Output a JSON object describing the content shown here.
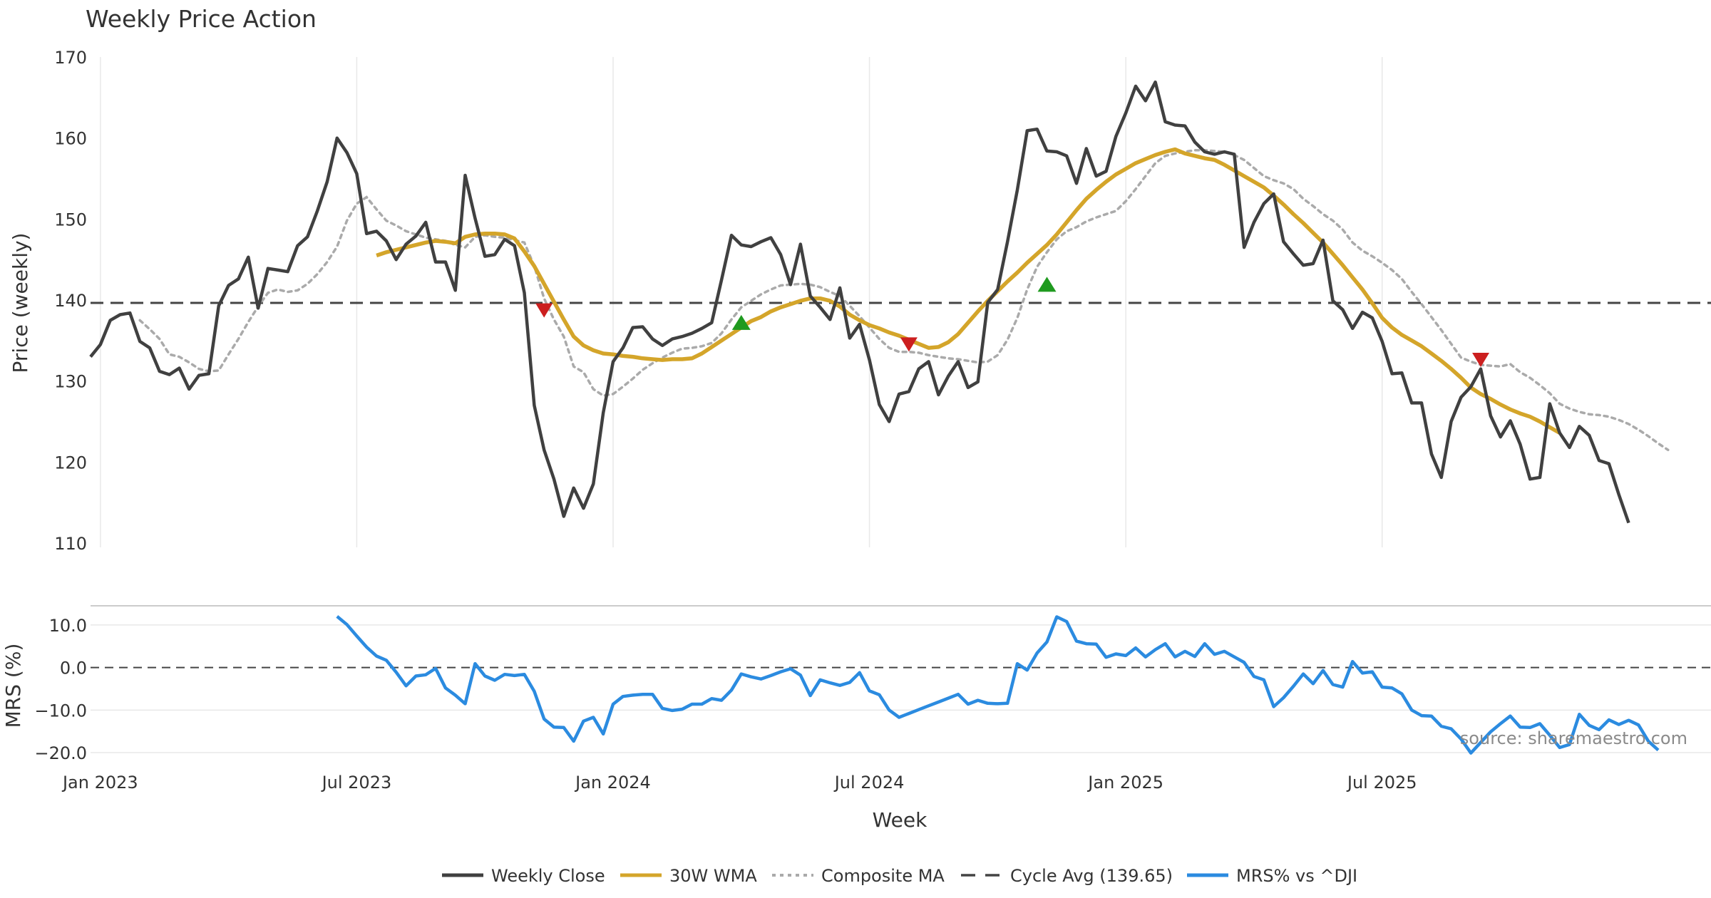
{
  "chart_data": {
    "type": "line",
    "title": "Weekly Price Action",
    "source": "source: sharemaestro.com",
    "xlabel": "Week",
    "x_ticks": [
      "Jan 2023",
      "Jul 2023",
      "Jan 2024",
      "Jul 2024",
      "Jan 2025",
      "Jul 2025"
    ],
    "legend_position": "bottom-center",
    "price_panel": {
      "ylabel": "Price (weekly)",
      "ylim": [
        110,
        170
      ],
      "yticks": [
        "110",
        "120",
        "130",
        "140",
        "150",
        "160",
        "170"
      ],
      "cycle_avg": 139.65,
      "series": [
        {
          "name": "Weekly Close",
          "color": "#404040",
          "start_week": 0,
          "values": [
            133.0,
            134.5,
            137.5,
            138.2,
            138.4,
            134.9,
            134.1,
            131.2,
            130.8,
            131.6,
            129.0,
            130.7,
            130.9,
            139.3,
            141.8,
            142.6,
            145.3,
            139.0,
            143.9,
            143.7,
            143.5,
            146.7,
            147.8,
            151.0,
            154.6,
            160.0,
            158.2,
            155.6,
            148.2,
            148.5,
            147.3,
            145.0,
            146.9,
            147.9,
            149.6,
            144.7,
            144.7,
            141.2,
            155.4,
            150.1,
            145.4,
            145.6,
            147.5,
            146.7,
            140.9,
            127.0,
            121.5,
            117.9,
            113.3,
            116.8,
            114.3,
            117.3,
            126.1,
            132.4,
            134.1,
            136.6,
            136.7,
            135.2,
            134.4,
            135.2,
            135.5,
            135.9,
            136.5,
            137.2,
            142.5,
            148.0,
            146.8,
            146.6,
            147.2,
            147.7,
            145.6,
            141.9,
            146.9,
            140.5,
            139.1,
            137.6,
            141.5,
            135.3,
            137.0,
            132.6,
            127.1,
            125.0,
            128.4,
            128.7,
            131.5,
            132.4,
            128.3,
            130.6,
            132.4,
            129.2,
            129.9,
            139.7,
            141.3,
            147.2,
            153.6,
            160.9,
            161.1,
            158.4,
            158.3,
            157.8,
            154.4,
            158.7,
            155.3,
            155.9,
            160.2,
            163.1,
            166.4,
            164.6,
            166.9,
            162.0,
            161.6,
            161.5,
            159.5,
            158.3,
            158.0,
            158.3,
            158.0,
            146.5,
            149.6,
            151.9,
            153.1,
            147.2,
            145.7,
            144.3,
            144.5,
            147.4,
            139.9,
            138.8,
            136.5,
            138.5,
            137.8,
            134.9,
            130.9,
            131.0,
            127.3,
            127.3,
            121.0,
            118.1,
            125.0,
            128.0,
            129.3,
            131.5,
            125.7,
            123.1,
            125.1,
            122.2,
            117.9,
            118.1,
            127.2,
            123.6,
            121.8,
            124.4,
            123.3,
            120.2,
            119.8,
            116.0,
            112.5
          ]
        },
        {
          "name": "30W WMA",
          "color": "#d4a52a",
          "start_week": 29,
          "values": [
            145.5,
            145.9,
            146.2,
            146.5,
            146.8,
            147.1,
            147.3,
            147.2,
            147.0,
            147.8,
            148.1,
            148.2,
            148.2,
            148.1,
            147.6,
            146.0,
            144.2,
            142.0,
            139.8,
            137.6,
            135.5,
            134.4,
            133.8,
            133.4,
            133.3,
            133.1,
            133.0,
            132.8,
            132.7,
            132.6,
            132.7,
            132.7,
            132.8,
            133.4,
            134.2,
            135.0,
            135.8,
            136.6,
            137.4,
            137.9,
            138.6,
            139.1,
            139.5,
            139.9,
            140.2,
            140.2,
            139.9,
            139.2,
            138.2,
            137.5,
            136.9,
            136.5,
            136.0,
            135.6,
            135.1,
            134.6,
            134.1,
            134.2,
            134.8,
            135.8,
            137.2,
            138.6,
            139.9,
            141.1,
            142.3,
            143.4,
            144.6,
            145.7,
            146.8,
            148.1,
            149.6,
            151.1,
            152.5,
            153.6,
            154.6,
            155.5,
            156.2,
            156.9,
            157.4,
            157.9,
            158.3,
            158.6,
            158.1,
            157.8,
            157.5,
            157.3,
            156.7,
            156.0,
            155.3,
            154.6,
            153.9,
            152.9,
            151.8,
            150.6,
            149.5,
            148.3,
            147.1,
            145.7,
            144.3,
            142.8,
            141.3,
            139.6,
            137.8,
            136.6,
            135.7,
            135.0,
            134.3,
            133.4,
            132.5,
            131.5,
            130.4,
            129.2,
            128.4,
            127.8,
            127.1,
            126.5,
            126.0,
            125.6,
            125.0,
            124.3,
            123.6
          ]
        },
        {
          "name": "Composite MA",
          "color": "#aaaaaa",
          "start_week": 5,
          "values": [
            137.5,
            136.4,
            135.2,
            133.3,
            133.0,
            132.3,
            131.5,
            131.2,
            131.3,
            133.3,
            135.2,
            137.3,
            139.2,
            140.9,
            141.3,
            141.0,
            141.2,
            142.0,
            143.2,
            144.7,
            146.6,
            149.8,
            151.9,
            152.7,
            151.2,
            149.8,
            149.2,
            148.5,
            148.1,
            147.7,
            147.5,
            147.3,
            146.8,
            146.5,
            147.8,
            148.0,
            147.8,
            147.7,
            147.4,
            147.1,
            144.2,
            140.2,
            137.6,
            135.5,
            131.8,
            131.1,
            129.0,
            128.2,
            128.4,
            129.3,
            130.3,
            131.4,
            132.2,
            132.9,
            133.5,
            134.0,
            134.1,
            134.3,
            134.7,
            135.9,
            137.6,
            139.1,
            139.9,
            140.7,
            141.3,
            141.8,
            141.9,
            142.0,
            141.9,
            141.6,
            141.0,
            140.5,
            139.3,
            138.0,
            136.6,
            135.2,
            134.1,
            133.6,
            133.6,
            133.5,
            133.2,
            133.0,
            132.8,
            132.7,
            132.5,
            132.3,
            132.4,
            133.2,
            135.1,
            137.8,
            141.3,
            144.1,
            145.9,
            147.5,
            148.5,
            149.0,
            149.7,
            150.2,
            150.6,
            151.0,
            152.2,
            153.7,
            155.3,
            156.9,
            157.8,
            158.1,
            158.3,
            158.5,
            158.5,
            158.4,
            158.3,
            157.9,
            157.3,
            156.3,
            155.3,
            154.8,
            154.4,
            153.7,
            152.5,
            151.6,
            150.6,
            149.8,
            148.7,
            147.1,
            146.1,
            145.4,
            144.6,
            143.7,
            142.6,
            141.0,
            139.5,
            137.9,
            136.3,
            134.6,
            132.9,
            132.4,
            132.0,
            131.9,
            131.8,
            132.1,
            131.1,
            130.4,
            129.5,
            128.5,
            127.2,
            126.6,
            126.2,
            125.9,
            125.8,
            125.6,
            125.2,
            124.7,
            124.0,
            123.2,
            122.3,
            121.5
          ]
        }
      ],
      "sell_markers": [
        {
          "week": 46,
          "price": 138.8
        },
        {
          "week": 83,
          "price": 134.6
        },
        {
          "week": 141,
          "price": 132.7
        }
      ],
      "buy_markers": [
        {
          "week": 66,
          "price": 137.2
        },
        {
          "week": 97,
          "price": 141.9
        }
      ]
    },
    "mrs_panel": {
      "ylabel": "MRS (%)",
      "ylim": [
        -21.5,
        14.5
      ],
      "yticks": [
        "−20.0",
        "−10.0",
        "0.0",
        "10.0"
      ],
      "series": [
        {
          "name": "MRS% vs ^DJI",
          "color": "#2b8be0",
          "start_week": 25,
          "values": [
            12.0,
            10.1,
            7.4,
            4.8,
            2.7,
            1.7,
            -1.1,
            -4.3,
            -2.0,
            -1.7,
            -0.2,
            -4.8,
            -6.5,
            -8.5,
            0.9,
            -2.0,
            -3.0,
            -1.6,
            -1.9,
            -1.6,
            -5.6,
            -12.1,
            -14.0,
            -14.1,
            -17.3,
            -12.6,
            -11.7,
            -15.6,
            -8.6,
            -6.8,
            -6.5,
            -6.3,
            -6.3,
            -9.6,
            -10.1,
            -9.8,
            -8.6,
            -8.6,
            -7.3,
            -7.7,
            -5.3,
            -1.5,
            -2.2,
            -2.7,
            -1.9,
            -1.0,
            -0.3,
            -1.8,
            -6.6,
            -2.9,
            -3.6,
            -4.2,
            -3.5,
            -1.2,
            -5.5,
            -6.4,
            -10.0,
            -11.7,
            -10.8,
            -9.9,
            -9.0,
            -8.1,
            -7.2,
            -6.3,
            -8.6,
            -7.7,
            -8.4,
            -8.5,
            -8.4,
            0.9,
            -0.6,
            3.4,
            6.0,
            11.9,
            10.8,
            6.2,
            5.6,
            5.5,
            2.4,
            3.2,
            2.8,
            4.6,
            2.5,
            4.2,
            5.6,
            2.5,
            3.8,
            2.6,
            5.6,
            3.1,
            3.8,
            2.5,
            1.2,
            -2.1,
            -2.9,
            -9.2,
            -7.1,
            -4.4,
            -1.5,
            -3.8,
            -0.7,
            -4.0,
            -4.6,
            1.4,
            -1.3,
            -1.0,
            -4.6,
            -4.8,
            -6.2,
            -10.0,
            -11.3,
            -11.4,
            -13.8,
            -14.4,
            -16.8,
            -20.1,
            -17.6,
            -15.1,
            -13.2,
            -11.4,
            -14.0,
            -14.1,
            -13.2,
            -15.9,
            -18.8,
            -18.1,
            -11.0,
            -13.6,
            -14.6,
            -12.3,
            -13.4,
            -12.4,
            -13.5,
            -17.3,
            -19.4
          ]
        }
      ]
    },
    "legend": [
      {
        "name": "Weekly Close",
        "color": "#404040",
        "style": "solid"
      },
      {
        "name": "30W WMA",
        "color": "#d4a52a",
        "style": "solid"
      },
      {
        "name": "Composite MA",
        "color": "#aaaaaa",
        "style": "dotted"
      },
      {
        "name": "Cycle Avg (139.65)",
        "color": "#444444",
        "style": "dashed"
      },
      {
        "name": "MRS% vs ^DJI",
        "color": "#2b8be0",
        "style": "solid"
      }
    ],
    "colors": {
      "sell_marker": "#cc1f1f",
      "buy_marker": "#1f9a1f",
      "cycle_avg": "#444444",
      "grid": "#e8e8e8"
    }
  }
}
